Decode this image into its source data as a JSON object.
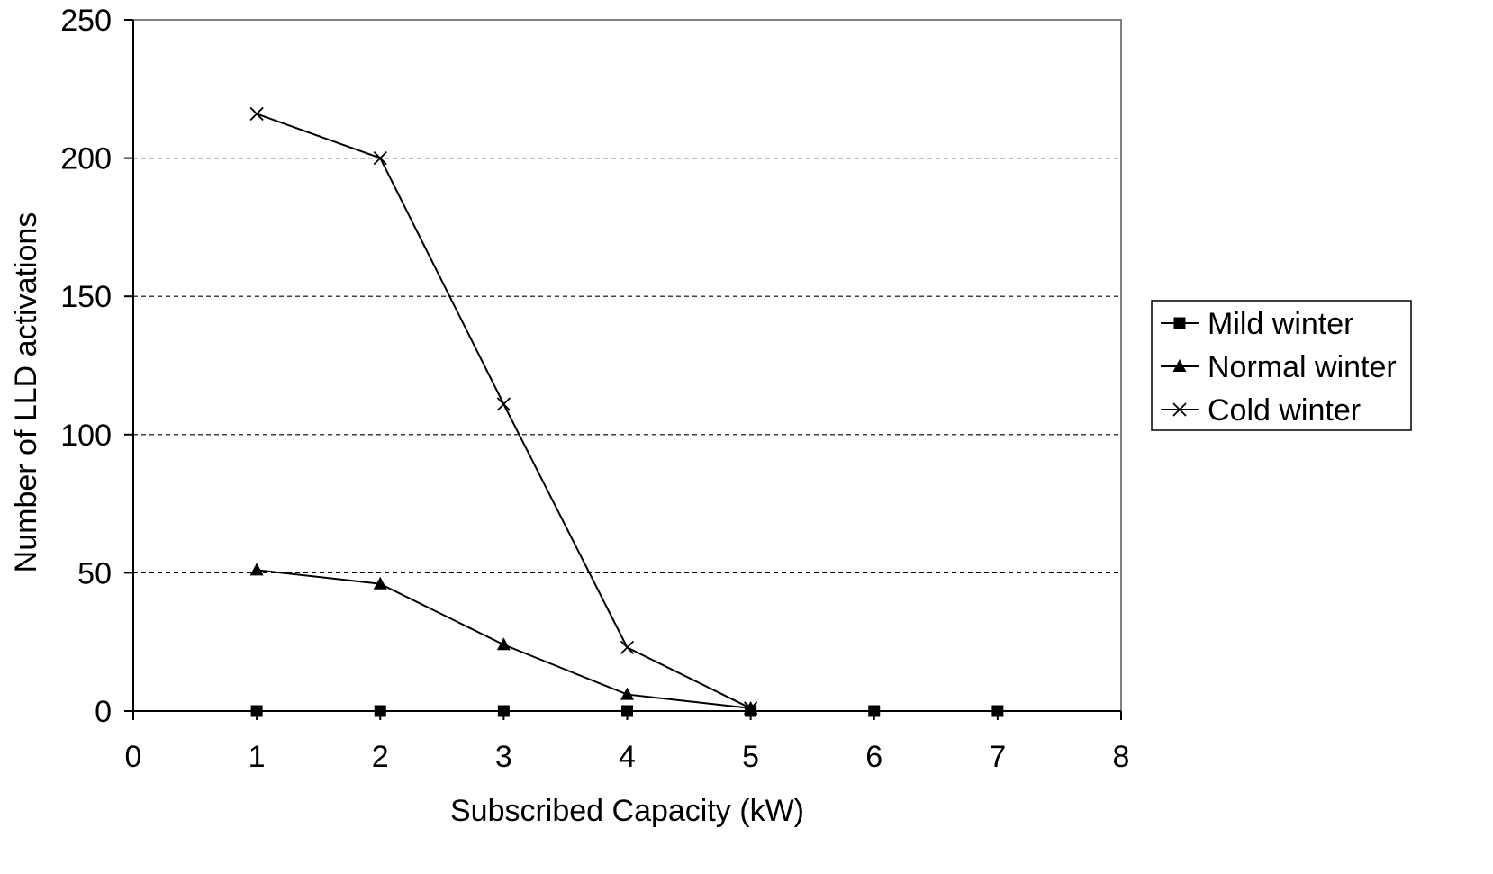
{
  "chart_data": {
    "type": "line",
    "title": "",
    "xlabel": "Subscribed Capacity (kW)",
    "ylabel": "Number of LLD activations",
    "xlim": [
      0,
      8
    ],
    "ylim": [
      0,
      250
    ],
    "xticks": [
      0,
      1,
      2,
      3,
      4,
      5,
      6,
      7,
      8
    ],
    "yticks": [
      0,
      50,
      100,
      150,
      200,
      250
    ],
    "grid": "horizontal dashed",
    "legend_position": "right",
    "series": [
      {
        "name": "Mild winter",
        "marker": "square",
        "color": "#000000",
        "x": [
          1,
          2,
          3,
          4,
          5,
          6,
          7
        ],
        "values": [
          0,
          0,
          0,
          0,
          0,
          0,
          0
        ]
      },
      {
        "name": "Normal winter",
        "marker": "triangle",
        "color": "#000000",
        "x": [
          1,
          2,
          3,
          4,
          5
        ],
        "values": [
          51,
          46,
          24,
          6,
          1
        ]
      },
      {
        "name": "Cold winter",
        "marker": "x",
        "color": "#000000",
        "x": [
          1,
          2,
          3,
          4,
          5
        ],
        "values": [
          216,
          200,
          111,
          23,
          1
        ]
      }
    ]
  }
}
